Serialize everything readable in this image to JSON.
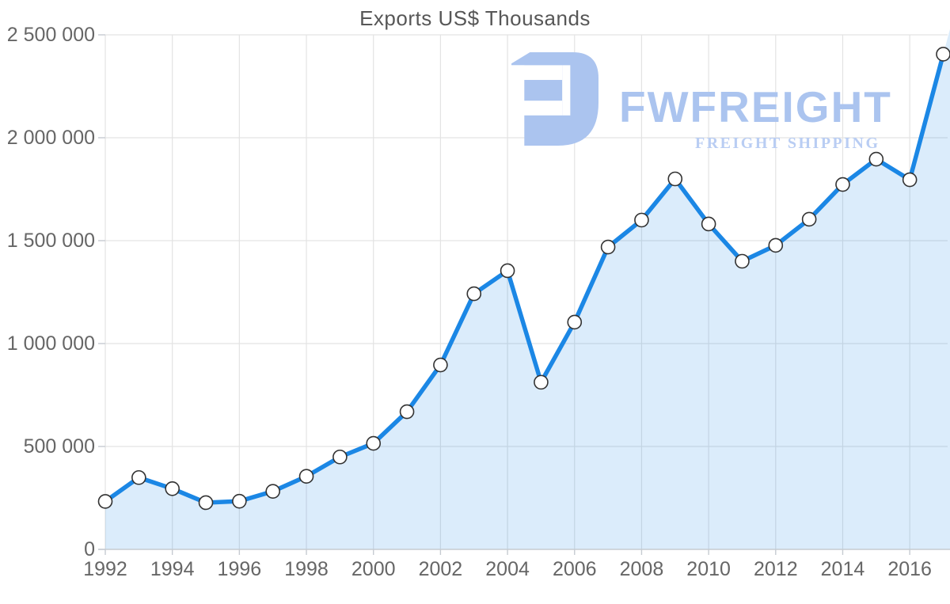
{
  "chart_data": {
    "type": "area",
    "title": "Exports US$ Thousands",
    "x": [
      1992,
      1993,
      1994,
      1995,
      1996,
      1997,
      1998,
      1999,
      2000,
      2001,
      2002,
      2003,
      2004,
      2005,
      2006,
      2007,
      2008,
      2009,
      2010,
      2011,
      2012,
      2013,
      2014,
      2015,
      2016,
      2017
    ],
    "series": [
      {
        "name": "Exports US$ Thousands",
        "values": [
          233000,
          349000,
          295000,
          227000,
          234000,
          282000,
          355000,
          449000,
          515000,
          669000,
          896000,
          1242000,
          1354000,
          812000,
          1104000,
          1469000,
          1600000,
          1800000,
          1581000,
          1400000,
          1477000,
          1604000,
          1773000,
          1896000,
          1796000,
          2406000
        ]
      }
    ],
    "xlabel": "",
    "ylabel": "",
    "ylim": [
      0,
      2500000
    ],
    "y_ticks": [
      0,
      500000,
      1000000,
      1500000,
      2000000,
      2500000
    ],
    "y_tick_labels": [
      "0",
      "500 000",
      "1 000 000",
      "1 500 000",
      "2 000 000",
      "2 500 000"
    ],
    "x_tick_years": [
      1992,
      1994,
      1996,
      1998,
      2000,
      2002,
      2004,
      2006,
      2008,
      2010,
      2012,
      2014,
      2016
    ],
    "grid": true,
    "legend_position": "none",
    "marker": "circle"
  },
  "watermark": {
    "brand": "FWFREIGHT",
    "tagline": "FREIGHT SHIPPING",
    "icon": "fwfreight-logo-icon"
  },
  "colors": {
    "line": "#1b87e5",
    "area_fill": "rgba(30,135,228,0.16)",
    "marker_fill": "#ffffff",
    "marker_stroke": "#333333",
    "grid": "#e3e3e3",
    "axis": "#c6cbd1",
    "label": "#666666",
    "title": "#575757",
    "watermark_primary": "#abc4ef",
    "watermark_secondary": "#b9cdf3"
  }
}
